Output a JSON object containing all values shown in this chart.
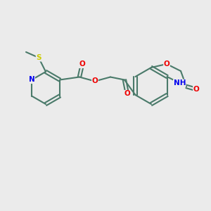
{
  "bg_color": "#ebebeb",
  "bond_color": "#4a7a6a",
  "bond_width": 1.5,
  "atom_colors": {
    "N": "#0000ee",
    "O": "#ee0000",
    "S": "#cccc00",
    "C": "#4a7a6a",
    "H": "#4a7a6a"
  },
  "font_size": 7.5
}
